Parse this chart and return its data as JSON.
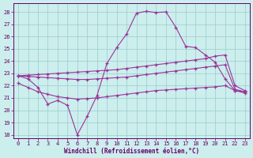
{
  "bg_color": "#cceeed",
  "line_color": "#993399",
  "grid_color": "#99cccc",
  "axis_color": "#660066",
  "xlabel": "Windchill (Refroidissement éolien,°C)",
  "xlim": [
    -0.5,
    23.5
  ],
  "ylim": [
    17.7,
    28.7
  ],
  "yticks": [
    18,
    19,
    20,
    21,
    22,
    23,
    24,
    25,
    26,
    27,
    28
  ],
  "xticks": [
    0,
    1,
    2,
    3,
    4,
    5,
    6,
    7,
    8,
    9,
    10,
    11,
    12,
    13,
    14,
    15,
    16,
    17,
    18,
    19,
    20,
    21,
    22,
    23
  ],
  "curve1_x": [
    0,
    1,
    2,
    3,
    4,
    5,
    6,
    7,
    8,
    9,
    10,
    11,
    12,
    13,
    14,
    15,
    16,
    17,
    18,
    19,
    20,
    21,
    22,
    23
  ],
  "curve1_y": [
    22.8,
    22.55,
    21.85,
    20.5,
    20.8,
    20.4,
    18.0,
    19.5,
    21.2,
    23.8,
    25.1,
    26.2,
    27.9,
    28.05,
    27.95,
    28.0,
    26.75,
    25.2,
    25.1,
    24.5,
    23.9,
    22.55,
    21.6,
    21.5
  ],
  "curve2_x": [
    0,
    1,
    2,
    3,
    4,
    5,
    6,
    7,
    8,
    9,
    10,
    11,
    12,
    13,
    14,
    15,
    16,
    17,
    18,
    19,
    20,
    21,
    22,
    23
  ],
  "curve2_y": [
    22.8,
    22.85,
    22.9,
    22.95,
    23.0,
    23.05,
    23.1,
    23.15,
    23.2,
    23.25,
    23.3,
    23.4,
    23.5,
    23.6,
    23.7,
    23.8,
    23.9,
    24.0,
    24.1,
    24.2,
    24.4,
    24.5,
    22.0,
    21.6
  ],
  "curve3_x": [
    0,
    1,
    2,
    3,
    4,
    5,
    6,
    7,
    8,
    9,
    10,
    11,
    12,
    13,
    14,
    15,
    16,
    17,
    18,
    19,
    20,
    21,
    22,
    23
  ],
  "curve3_y": [
    22.8,
    22.75,
    22.7,
    22.65,
    22.6,
    22.55,
    22.5,
    22.5,
    22.55,
    22.6,
    22.65,
    22.7,
    22.8,
    22.9,
    23.0,
    23.1,
    23.2,
    23.3,
    23.4,
    23.5,
    23.6,
    23.7,
    21.7,
    21.5
  ],
  "curve4_x": [
    0,
    1,
    2,
    3,
    4,
    5,
    6,
    7,
    8,
    9,
    10,
    11,
    12,
    13,
    14,
    15,
    16,
    17,
    18,
    19,
    20,
    21,
    22,
    23
  ],
  "curve4_y": [
    22.2,
    21.85,
    21.5,
    21.3,
    21.1,
    21.0,
    20.9,
    20.95,
    21.0,
    21.1,
    21.2,
    21.3,
    21.4,
    21.5,
    21.6,
    21.65,
    21.7,
    21.75,
    21.8,
    21.85,
    21.9,
    22.0,
    21.6,
    21.4
  ]
}
